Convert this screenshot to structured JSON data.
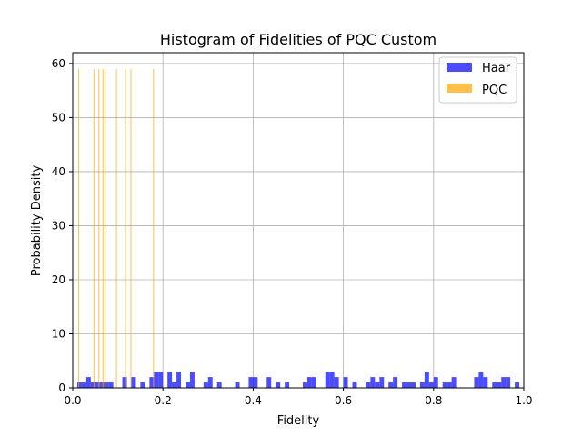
{
  "chart_data": {
    "type": "bar",
    "title": "Histogram of Fidelities of PQC Custom",
    "xlabel": "Fidelity",
    "ylabel": "Probability Density",
    "xlim": [
      0.0,
      1.0
    ],
    "ylim": [
      0,
      62
    ],
    "xticks": [
      "0.0",
      "0.2",
      "0.4",
      "0.6",
      "0.8",
      "1.0"
    ],
    "xtick_values": [
      0.0,
      0.2,
      0.4,
      0.6,
      0.8,
      1.0
    ],
    "yticks": [
      "0",
      "10",
      "20",
      "30",
      "40",
      "50",
      "60"
    ],
    "ytick_values": [
      0,
      10,
      20,
      30,
      40,
      50,
      60
    ],
    "grid": true,
    "legend_position": "top-right",
    "series": [
      {
        "name": "Haar",
        "color": "#0000ff",
        "opacity": 0.7,
        "bin_width": 0.01,
        "bins": [
          [
            0.01,
            1
          ],
          [
            0.02,
            1
          ],
          [
            0.03,
            2
          ],
          [
            0.04,
            1
          ],
          [
            0.05,
            1
          ],
          [
            0.06,
            1
          ],
          [
            0.07,
            1
          ],
          [
            0.08,
            1
          ],
          [
            0.11,
            2
          ],
          [
            0.13,
            2
          ],
          [
            0.15,
            1
          ],
          [
            0.17,
            2
          ],
          [
            0.18,
            3
          ],
          [
            0.19,
            3
          ],
          [
            0.21,
            3
          ],
          [
            0.22,
            1
          ],
          [
            0.23,
            3
          ],
          [
            0.25,
            1
          ],
          [
            0.26,
            3
          ],
          [
            0.29,
            1
          ],
          [
            0.3,
            2
          ],
          [
            0.32,
            1
          ],
          [
            0.36,
            1
          ],
          [
            0.39,
            2
          ],
          [
            0.4,
            2
          ],
          [
            0.43,
            2
          ],
          [
            0.45,
            1
          ],
          [
            0.47,
            1
          ],
          [
            0.51,
            1
          ],
          [
            0.52,
            2
          ],
          [
            0.53,
            2
          ],
          [
            0.56,
            3
          ],
          [
            0.57,
            3
          ],
          [
            0.58,
            2
          ],
          [
            0.6,
            2
          ],
          [
            0.62,
            1
          ],
          [
            0.65,
            1
          ],
          [
            0.66,
            2
          ],
          [
            0.67,
            1
          ],
          [
            0.68,
            2
          ],
          [
            0.7,
            1
          ],
          [
            0.71,
            2
          ],
          [
            0.73,
            1
          ],
          [
            0.74,
            1
          ],
          [
            0.75,
            1
          ],
          [
            0.77,
            1
          ],
          [
            0.78,
            3
          ],
          [
            0.79,
            1
          ],
          [
            0.8,
            2
          ],
          [
            0.82,
            1
          ],
          [
            0.83,
            1
          ],
          [
            0.84,
            2
          ],
          [
            0.89,
            2
          ],
          [
            0.9,
            3
          ],
          [
            0.91,
            2
          ],
          [
            0.93,
            1
          ],
          [
            0.94,
            1
          ],
          [
            0.95,
            2
          ],
          [
            0.96,
            2
          ],
          [
            0.98,
            1
          ]
        ]
      },
      {
        "name": "PQC",
        "color": "#ffa500",
        "opacity": 0.7,
        "bin_width": 0.002,
        "bins": [
          [
            0.012,
            59
          ],
          [
            0.046,
            59
          ],
          [
            0.057,
            59
          ],
          [
            0.066,
            59
          ],
          [
            0.071,
            59
          ],
          [
            0.096,
            59
          ],
          [
            0.116,
            59
          ],
          [
            0.128,
            59
          ],
          [
            0.178,
            59
          ]
        ]
      }
    ]
  }
}
